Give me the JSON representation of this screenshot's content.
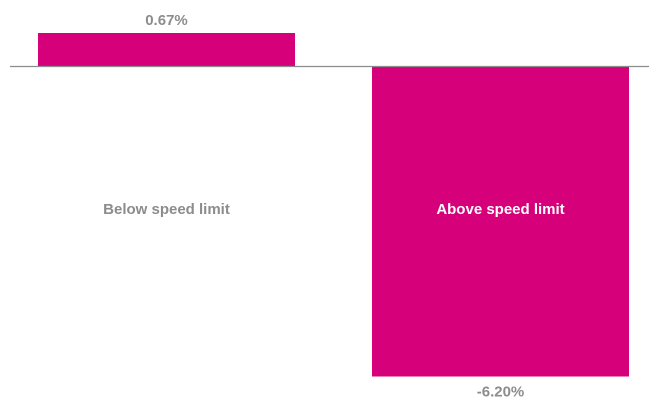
{
  "chart_data": {
    "type": "bar",
    "categories": [
      "Below speed limit",
      "Above speed limit"
    ],
    "values": [
      0.67,
      -6.2
    ],
    "value_labels": [
      "0.67%",
      "-6.20%"
    ],
    "title": "",
    "xlabel": "",
    "ylabel": "",
    "ylim": [
      -6.2,
      0.67
    ],
    "grid": false,
    "legend": "none",
    "colors": {
      "bar": "#d6007a",
      "baseline": "#8c8c8c",
      "label_outside": "#8c8c8c",
      "label_inside_bar": "#ffffff"
    }
  }
}
